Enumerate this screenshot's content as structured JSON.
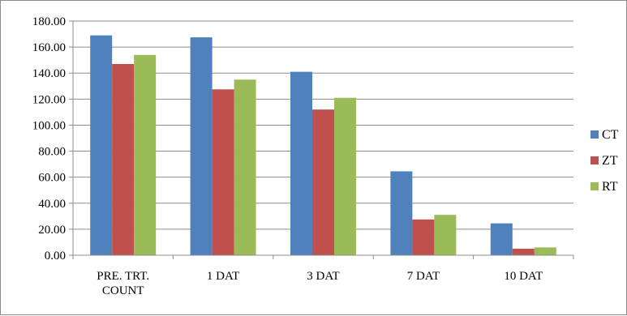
{
  "chart_data": {
    "type": "bar",
    "categories": [
      "PRE. TRT. COUNT",
      "1 DAT",
      "3 DAT",
      "7 DAT",
      "10 DAT"
    ],
    "category_lines": [
      [
        "PRE. TRT.",
        "COUNT"
      ],
      [
        "1 DAT"
      ],
      [
        "3 DAT"
      ],
      [
        "7 DAT"
      ],
      [
        "10 DAT"
      ]
    ],
    "series": [
      {
        "name": "CT",
        "color": "#4f81bd",
        "values": [
          169,
          167.5,
          141,
          64.5,
          24.5
        ]
      },
      {
        "name": "ZT",
        "color": "#c0504d",
        "values": [
          147,
          127.5,
          112,
          27.5,
          5
        ]
      },
      {
        "name": "RT",
        "color": "#9bbb59",
        "values": [
          154,
          135,
          121,
          31,
          6
        ]
      }
    ],
    "yticks": [
      "0.00",
      "20.00",
      "40.00",
      "60.00",
      "80.00",
      "100.00",
      "120.00",
      "140.00",
      "160.00",
      "180.00"
    ],
    "ylim": [
      0,
      180
    ],
    "grid": true,
    "legend_position": "right",
    "title": "",
    "xlabel": "",
    "ylabel": ""
  }
}
